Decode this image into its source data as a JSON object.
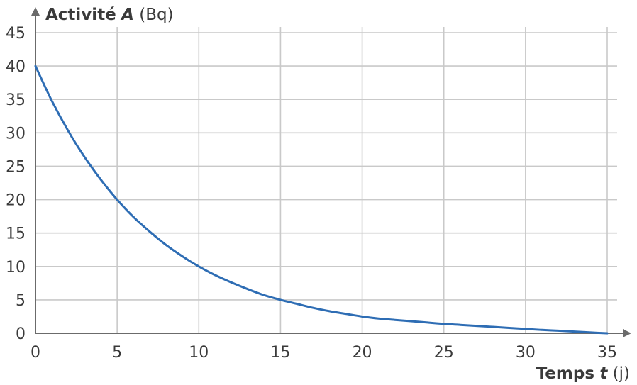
{
  "chart_data": {
    "type": "line",
    "ylabel": {
      "name": "Activité",
      "symbol": "A",
      "unit": "(Bq)"
    },
    "xlabel": {
      "name": "Temps",
      "symbol": "t",
      "unit": "(j)"
    },
    "xlim": [
      0,
      35
    ],
    "ylim": [
      0,
      45
    ],
    "xticks": [
      0,
      5,
      10,
      15,
      20,
      25,
      30,
      35
    ],
    "yticks": [
      0,
      5,
      10,
      15,
      20,
      25,
      30,
      35,
      40,
      45
    ],
    "grid": true,
    "series": [
      {
        "color": "#2e6db4",
        "x": [
          0,
          1,
          2,
          3,
          4,
          5,
          6,
          7,
          8,
          9,
          10,
          11,
          12,
          13,
          14,
          15,
          16,
          17,
          18,
          19,
          20,
          21,
          22,
          23,
          24,
          25,
          26,
          27,
          28,
          29,
          30,
          31,
          32,
          33,
          34,
          35
        ],
        "y": [
          40,
          34.8,
          30.3,
          26.4,
          23.0,
          20,
          17.4,
          15.2,
          13.2,
          11.5,
          10,
          8.7,
          7.6,
          6.6,
          5.7,
          5,
          4.4,
          3.8,
          3.3,
          2.9,
          2.5,
          2.2,
          2.0,
          1.8,
          1.6,
          1.4,
          1.25,
          1.1,
          0.95,
          0.8,
          0.65,
          0.5,
          0.38,
          0.25,
          0.12,
          0
        ]
      }
    ]
  }
}
